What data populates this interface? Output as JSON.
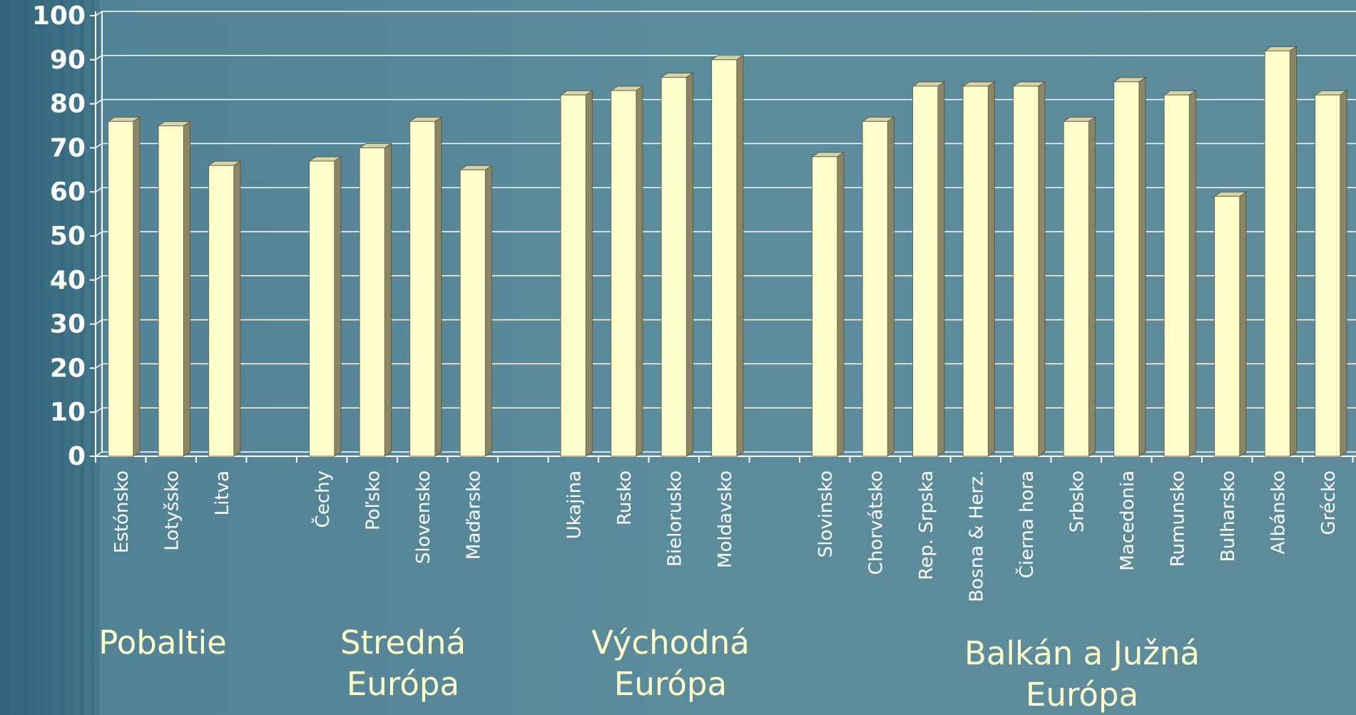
{
  "chart_data": {
    "type": "bar",
    "categories": [
      "Estónsko",
      "Lotyšsko",
      "Litva",
      null,
      "Čechy",
      "Poľsko",
      "Slovensko",
      "Maďarsko",
      null,
      "Ukajina",
      "Rusko",
      "Bielorusko",
      "Moldavsko",
      null,
      "Slovinsko",
      "Chorvátsko",
      "Rep. Srpska",
      "Bosna & Herz.",
      "Čierna hora",
      "Srbsko",
      "Macedonia",
      "Rumunsko",
      "Bulharsko",
      "Albánsko",
      "Grécko"
    ],
    "values": [
      76,
      75,
      66,
      null,
      67,
      70,
      76,
      65,
      null,
      82,
      83,
      86,
      90,
      null,
      68,
      76,
      84,
      84,
      84,
      76,
      85,
      82,
      59,
      92,
      82
    ],
    "color": "#ffffcc",
    "ylim": [
      0,
      100
    ],
    "yticks": [
      0,
      10,
      20,
      30,
      40,
      50,
      60,
      70,
      80,
      90,
      100
    ],
    "grid": true,
    "group_labels": [
      [
        "Pobaltie"
      ],
      [
        "Stredná",
        "Európa"
      ],
      [
        "Východná",
        "Európa"
      ],
      [
        "Balkán a Južná",
        "Európa"
      ]
    ]
  }
}
